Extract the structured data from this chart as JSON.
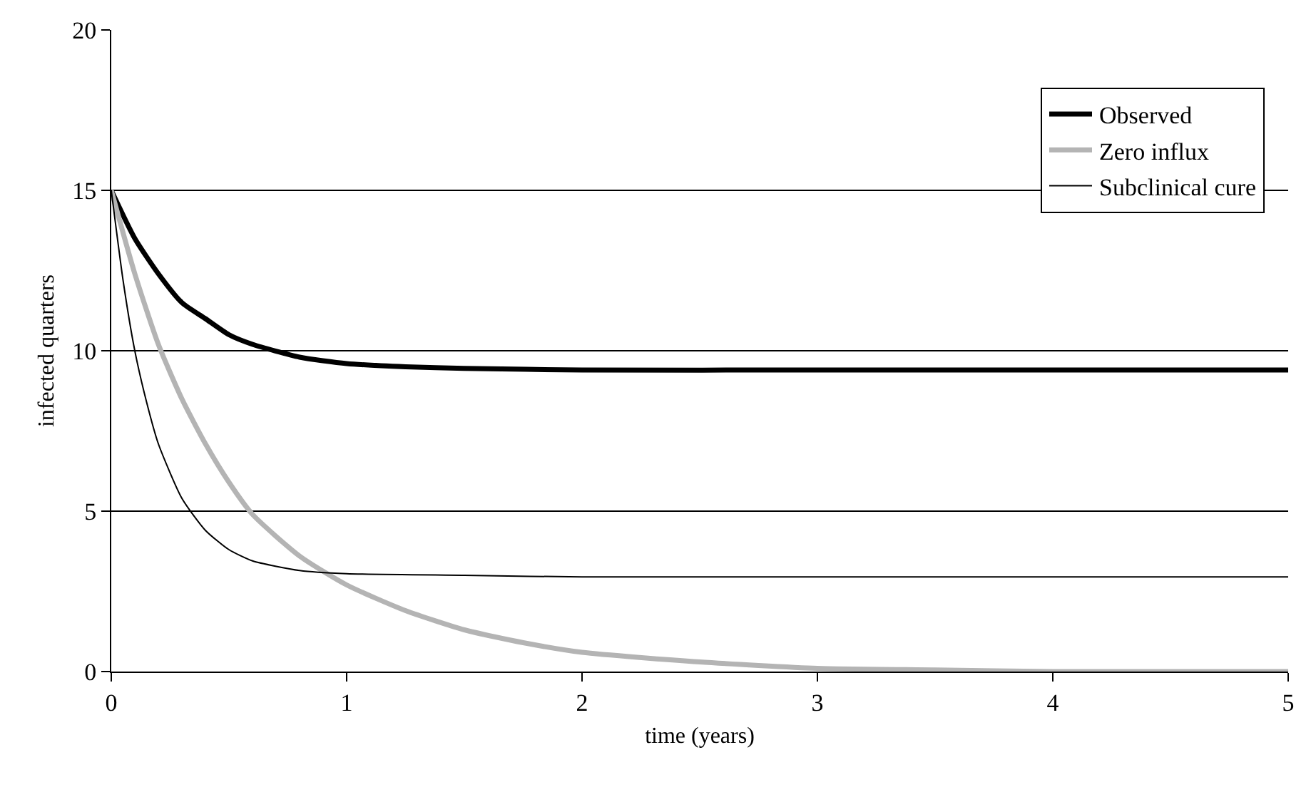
{
  "chart_data": {
    "type": "line",
    "xlabel": "time (years)",
    "ylabel": "infected quarters",
    "xlim": [
      0,
      5
    ],
    "xticks": [
      0,
      1,
      2,
      3,
      4,
      5
    ],
    "ylim": [
      0,
      20
    ],
    "yticks": [
      0,
      5,
      10,
      15,
      20
    ],
    "grid": "y",
    "legend": "top right",
    "marker": "none",
    "line_style": "solid",
    "series": [
      {
        "name": "Observed",
        "color": "#000000",
        "x": [
          0,
          0.1,
          0.2,
          0.3,
          0.4,
          0.5,
          0.6,
          0.8,
          1.0,
          1.25,
          1.5,
          2,
          3,
          4,
          5
        ],
        "values": [
          15,
          13.5,
          12.4,
          11.5,
          11.0,
          10.5,
          10.2,
          9.8,
          9.6,
          9.5,
          9.45,
          9.4,
          9.4,
          9.4,
          9.4
        ]
      },
      {
        "name": "Zero influx",
        "color": "#b4b4b4",
        "x": [
          0,
          0.1,
          0.2,
          0.3,
          0.4,
          0.5,
          0.6,
          0.8,
          1.0,
          1.25,
          1.5,
          1.75,
          2,
          2.5,
          3,
          3.5,
          4,
          5
        ],
        "values": [
          15,
          12.4,
          10.2,
          8.5,
          7.1,
          5.9,
          4.9,
          3.6,
          2.7,
          1.9,
          1.3,
          0.9,
          0.6,
          0.3,
          0.1,
          0.05,
          0,
          0
        ]
      },
      {
        "name": "Subclinical cure",
        "color": "#000000",
        "x": [
          0,
          0.05,
          0.1,
          0.15,
          0.2,
          0.3,
          0.4,
          0.5,
          0.6,
          0.8,
          1.0,
          1.5,
          2,
          5
        ],
        "values": [
          15,
          12.2,
          10.0,
          8.4,
          7.1,
          5.4,
          4.4,
          3.8,
          3.45,
          3.15,
          3.05,
          3.0,
          2.95,
          2.95
        ]
      }
    ]
  }
}
